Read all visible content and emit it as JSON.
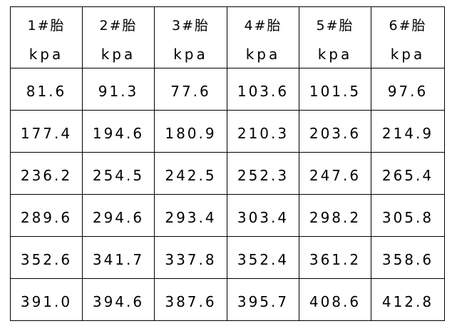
{
  "table": {
    "headers": [
      {
        "name": "1#胎",
        "unit": "kpa"
      },
      {
        "name": "2#胎",
        "unit": "kpa"
      },
      {
        "name": "3#胎",
        "unit": "kpa"
      },
      {
        "name": "4#胎",
        "unit": "kpa"
      },
      {
        "name": "5#胎",
        "unit": "kpa"
      },
      {
        "name": "6#胎",
        "unit": "kpa"
      }
    ],
    "rows": [
      [
        "81.6",
        "91.3",
        "77.6",
        "103.6",
        "101.5",
        "97.6"
      ],
      [
        "177.4",
        "194.6",
        "180.9",
        "210.3",
        "203.6",
        "214.9"
      ],
      [
        "236.2",
        "254.5",
        "242.5",
        "252.3",
        "247.6",
        "265.4"
      ],
      [
        "289.6",
        "294.6",
        "293.4",
        "303.4",
        "298.2",
        "305.8"
      ],
      [
        "352.6",
        "341.7",
        "337.8",
        "352.4",
        "361.2",
        "358.6"
      ],
      [
        "391.0",
        "394.6",
        "387.6",
        "395.7",
        "408.6",
        "412.8"
      ]
    ]
  }
}
